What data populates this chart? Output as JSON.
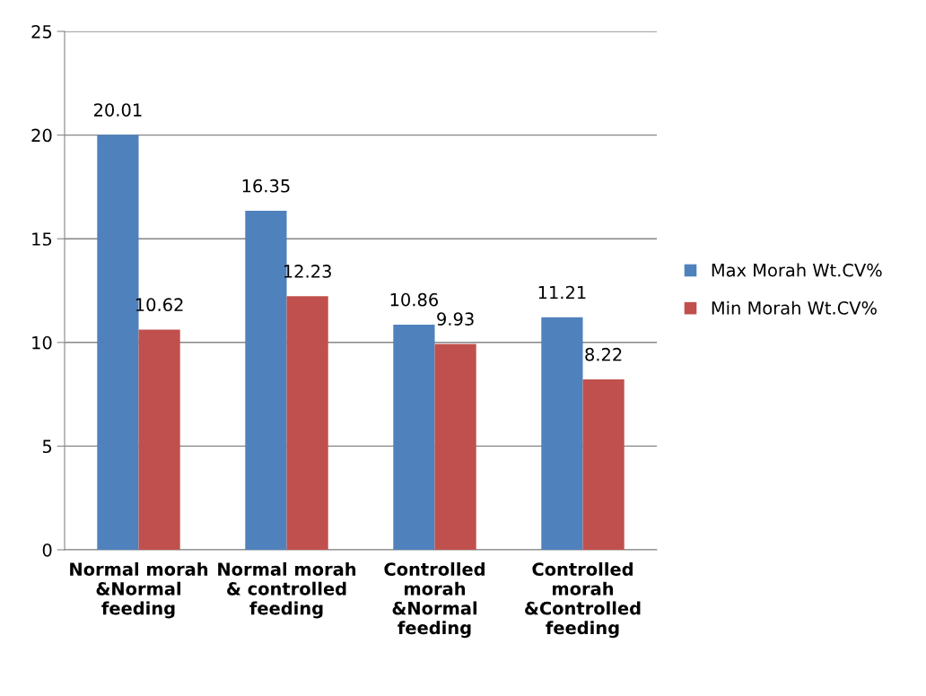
{
  "chart_data": {
    "type": "bar",
    "categories": [
      "Normal morah\n&Normal\nfeeding",
      "Normal morah\n& controlled\nfeeding",
      "Controlled\nmorah\n&Normal\nfeeding",
      "Controlled\nmorah\n&Controlled\nfeeding"
    ],
    "series": [
      {
        "name": "Max Morah Wt.CV%",
        "color": "#4f81bd",
        "values": [
          20.01,
          16.35,
          10.86,
          11.21
        ]
      },
      {
        "name": "Min Morah Wt.CV%",
        "color": "#c0504d",
        "values": [
          10.62,
          12.23,
          9.93,
          8.22
        ]
      }
    ],
    "ylim": [
      0,
      25
    ],
    "yticks": [
      0,
      5,
      10,
      15,
      20,
      25
    ],
    "grid": "y",
    "legend": "right",
    "data_labels": true
  }
}
